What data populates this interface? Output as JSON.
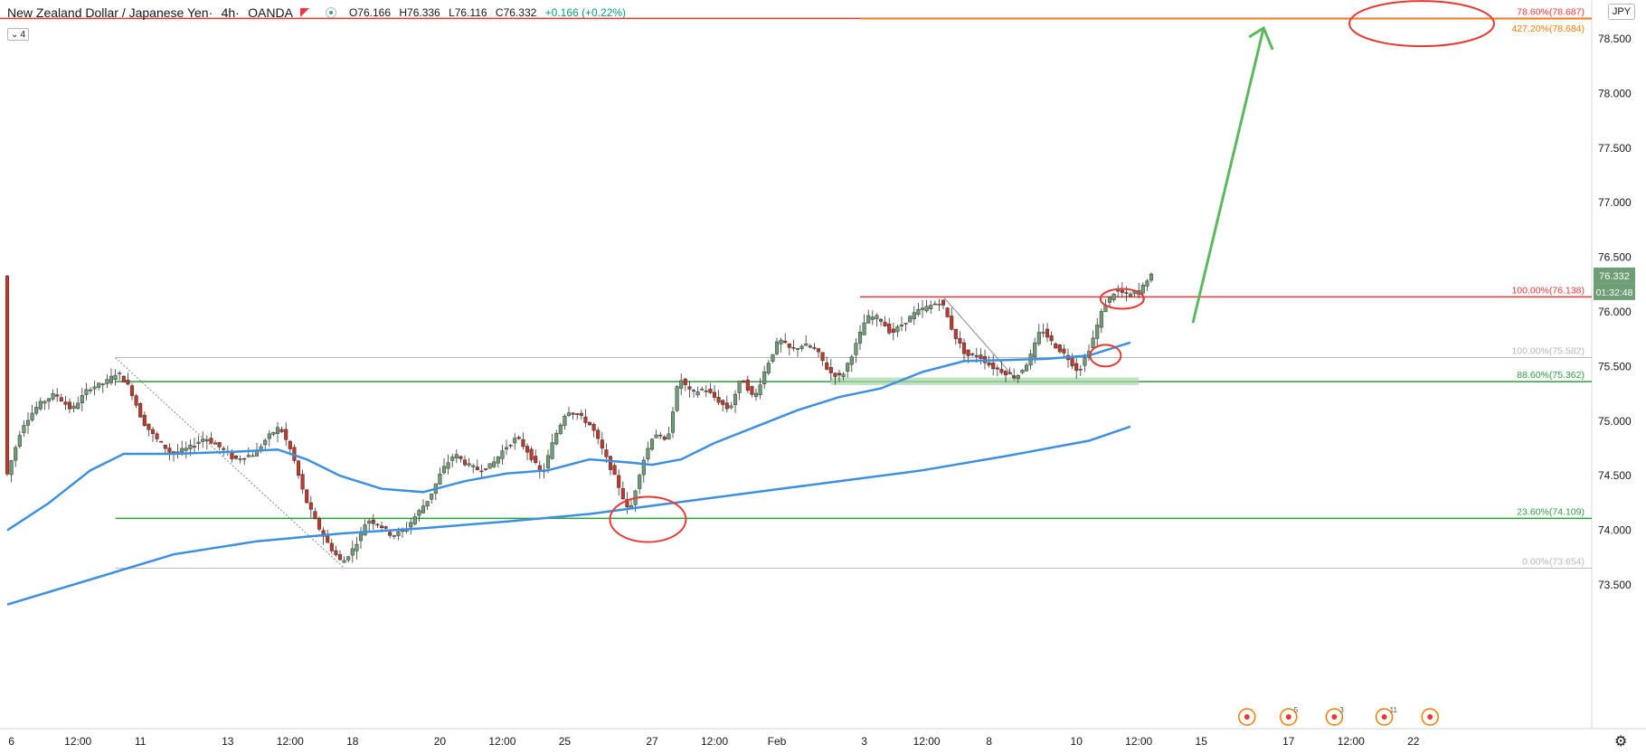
{
  "header": {
    "symbol": "New Zealand Dollar / Japanese Yen",
    "interval": "4h",
    "broker": "OANDA",
    "open": "O76.166",
    "high": "H76.336",
    "low": "L76.116",
    "close": "C76.332",
    "change": "+0.166 (+0.22%)",
    "interval_box": "4"
  },
  "currency_badge": "JPY",
  "price_label": "76.332",
  "countdown_label": "01:32:48",
  "colors": {
    "bull": "#6e9e73",
    "bear": "#c0392b",
    "ma": "#3d8fe0",
    "fib_green": "#2e9e3e",
    "fib_red": "#e53935",
    "fib_orange": "#f57c00",
    "fib_gray": "#b8b8b8",
    "arrow": "#5cb85c",
    "circle": "#e53935",
    "axis_text": "#131722",
    "price_bg": "#6e9e73"
  },
  "chart_data": {
    "type": "candlestick",
    "y_axis": {
      "range": [
        73.3,
        78.8
      ],
      "ticks": [
        "73.500",
        "74.000",
        "74.500",
        "75.000",
        "75.500",
        "76.000",
        "76.500",
        "77.000",
        "77.500",
        "78.000",
        "78.500"
      ]
    },
    "x_axis": {
      "ticks": [
        {
          "label": "6",
          "bar": 1
        },
        {
          "label": "12:00",
          "bar": 17
        },
        {
          "label": "11",
          "bar": 32
        },
        {
          "label": "13",
          "bar": 53
        },
        {
          "label": "12:00",
          "bar": 68
        },
        {
          "label": "18",
          "bar": 83
        },
        {
          "label": "20",
          "bar": 104
        },
        {
          "label": "12:00",
          "bar": 119
        },
        {
          "label": "25",
          "bar": 134
        },
        {
          "label": "27",
          "bar": 155
        },
        {
          "label": "12:00",
          "bar": 170
        },
        {
          "label": "Feb",
          "bar": 185
        },
        {
          "label": "3",
          "bar": 206
        },
        {
          "label": "12:00",
          "bar": 221
        },
        {
          "label": "8",
          "bar": 236
        },
        {
          "label": "10",
          "bar": 257
        },
        {
          "label": "12:00",
          "bar": 272
        },
        {
          "label": "15",
          "bar": 287
        },
        {
          "label": "17",
          "bar": 308
        },
        {
          "label": "12:00",
          "bar": 323
        },
        {
          "label": "22",
          "bar": 338
        }
      ]
    },
    "anchors": [
      [
        0,
        74.45
      ],
      [
        4,
        74.95
      ],
      [
        8,
        75.15
      ],
      [
        12,
        75.25
      ],
      [
        16,
        75.1
      ],
      [
        20,
        75.3
      ],
      [
        24,
        75.35
      ],
      [
        27,
        75.45
      ],
      [
        30,
        75.3
      ],
      [
        33,
        75.0
      ],
      [
        36,
        74.85
      ],
      [
        40,
        74.7
      ],
      [
        44,
        74.75
      ],
      [
        48,
        74.85
      ],
      [
        52,
        74.75
      ],
      [
        55,
        74.65
      ],
      [
        60,
        74.7
      ],
      [
        63,
        74.85
      ],
      [
        66,
        74.95
      ],
      [
        69,
        74.7
      ],
      [
        72,
        74.3
      ],
      [
        75,
        74.05
      ],
      [
        78,
        73.85
      ],
      [
        81,
        73.7
      ],
      [
        84,
        73.85
      ],
      [
        87,
        74.1
      ],
      [
        90,
        74.05
      ],
      [
        93,
        73.95
      ],
      [
        96,
        74.0
      ],
      [
        99,
        74.15
      ],
      [
        102,
        74.3
      ],
      [
        105,
        74.55
      ],
      [
        108,
        74.7
      ],
      [
        111,
        74.6
      ],
      [
        114,
        74.55
      ],
      [
        117,
        74.6
      ],
      [
        120,
        74.75
      ],
      [
        123,
        74.85
      ],
      [
        126,
        74.7
      ],
      [
        129,
        74.5
      ],
      [
        132,
        74.85
      ],
      [
        135,
        75.1
      ],
      [
        138,
        75.05
      ],
      [
        141,
        74.95
      ],
      [
        144,
        74.7
      ],
      [
        147,
        74.45
      ],
      [
        150,
        74.15
      ],
      [
        153,
        74.6
      ],
      [
        156,
        74.9
      ],
      [
        159,
        74.8
      ],
      [
        162,
        75.4
      ],
      [
        165,
        75.25
      ],
      [
        168,
        75.3
      ],
      [
        171,
        75.2
      ],
      [
        174,
        75.1
      ],
      [
        177,
        75.4
      ],
      [
        180,
        75.2
      ],
      [
        183,
        75.5
      ],
      [
        186,
        75.75
      ],
      [
        189,
        75.65
      ],
      [
        192,
        75.7
      ],
      [
        195,
        75.65
      ],
      [
        198,
        75.45
      ],
      [
        201,
        75.4
      ],
      [
        204,
        75.65
      ],
      [
        207,
        75.95
      ],
      [
        210,
        75.95
      ],
      [
        213,
        75.8
      ],
      [
        216,
        75.9
      ],
      [
        219,
        76.0
      ],
      [
        222,
        76.05
      ],
      [
        225,
        76.1
      ],
      [
        228,
        75.8
      ],
      [
        231,
        75.6
      ],
      [
        234,
        75.6
      ],
      [
        237,
        75.5
      ],
      [
        240,
        75.45
      ],
      [
        243,
        75.4
      ],
      [
        246,
        75.55
      ],
      [
        249,
        75.85
      ],
      [
        252,
        75.7
      ],
      [
        255,
        75.6
      ],
      [
        258,
        75.45
      ],
      [
        261,
        75.7
      ],
      [
        264,
        76.05
      ],
      [
        267,
        76.2
      ],
      [
        270,
        76.15
      ],
      [
        273,
        76.2
      ],
      [
        275,
        76.33
      ]
    ],
    "ma_fast": [
      [
        0,
        74.0
      ],
      [
        10,
        74.25
      ],
      [
        20,
        74.55
      ],
      [
        28,
        74.7
      ],
      [
        40,
        74.7
      ],
      [
        55,
        74.72
      ],
      [
        65,
        74.74
      ],
      [
        72,
        74.65
      ],
      [
        80,
        74.5
      ],
      [
        90,
        74.38
      ],
      [
        100,
        74.35
      ],
      [
        110,
        74.45
      ],
      [
        120,
        74.52
      ],
      [
        130,
        74.55
      ],
      [
        140,
        74.65
      ],
      [
        150,
        74.62
      ],
      [
        155,
        74.6
      ],
      [
        162,
        74.65
      ],
      [
        170,
        74.8
      ],
      [
        180,
        74.95
      ],
      [
        190,
        75.1
      ],
      [
        200,
        75.22
      ],
      [
        210,
        75.3
      ],
      [
        220,
        75.45
      ],
      [
        230,
        75.55
      ],
      [
        240,
        75.56
      ],
      [
        250,
        75.57
      ],
      [
        260,
        75.6
      ],
      [
        270,
        75.72
      ]
    ],
    "ma_slow": [
      [
        0,
        73.32
      ],
      [
        20,
        73.55
      ],
      [
        40,
        73.78
      ],
      [
        60,
        73.9
      ],
      [
        80,
        73.97
      ],
      [
        100,
        74.02
      ],
      [
        120,
        74.08
      ],
      [
        140,
        74.15
      ],
      [
        160,
        74.25
      ],
      [
        180,
        74.35
      ],
      [
        200,
        74.45
      ],
      [
        220,
        74.55
      ],
      [
        240,
        74.68
      ],
      [
        260,
        74.82
      ],
      [
        270,
        74.95
      ]
    ],
    "fib_levels": [
      {
        "label": "78.60%(78.687)",
        "value": 78.687,
        "color": "#e53935",
        "x_start_bar": -10
      },
      {
        "label": "427.20%(78.684)",
        "value": 78.684,
        "color": "#f57c00",
        "x_start_bar": 205
      },
      {
        "label": "100.00%(76.138)",
        "value": 76.138,
        "color": "#e53935",
        "x_start_bar": 205
      },
      {
        "label": "100.00%(75.582)",
        "value": 75.582,
        "color": "#b8b8b8",
        "x_start_bar": 26
      },
      {
        "label": "88.60%(75.362)",
        "value": 75.362,
        "color": "#2e9e3e",
        "x_start_bar": 26
      },
      {
        "label": "23.60%(74.109)",
        "value": 74.109,
        "color": "#2e9e3e",
        "x_start_bar": 26
      },
      {
        "label": "0.00%(73.654)",
        "value": 73.654,
        "color": "#b8b8b8",
        "x_start_bar": 26
      }
    ],
    "event_icons": [
      {
        "bar": 298,
        "count": ""
      },
      {
        "bar": 308,
        "count": "5"
      },
      {
        "bar": 319,
        "count": "3"
      },
      {
        "bar": 331,
        "count": "11"
      },
      {
        "bar": 342,
        "count": ""
      }
    ]
  }
}
